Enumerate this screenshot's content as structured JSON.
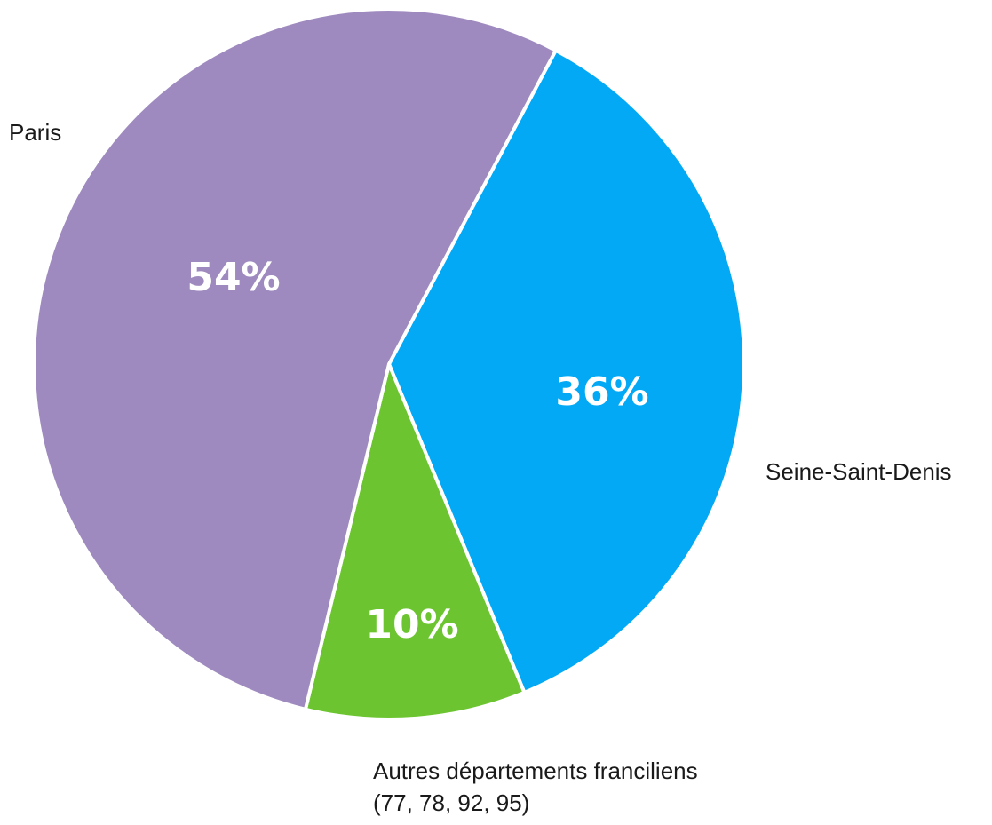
{
  "chart_data": {
    "type": "pie",
    "categories": [
      "Paris",
      "Seine-Saint-Denis",
      "Autres départements franciliens (77, 78, 92, 95)"
    ],
    "values": [
      54,
      36,
      10
    ],
    "value_labels": [
      "54%",
      "36%",
      "10%"
    ],
    "category_label_lines": [
      [
        "Paris"
      ],
      [
        "Seine-Saint-Denis"
      ],
      [
        "Autres départements franciliens",
        "(77, 78, 92, 95)"
      ]
    ],
    "colors": [
      "#9e8abf",
      "#03a9f4",
      "#6cc530"
    ],
    "legend": "none"
  }
}
